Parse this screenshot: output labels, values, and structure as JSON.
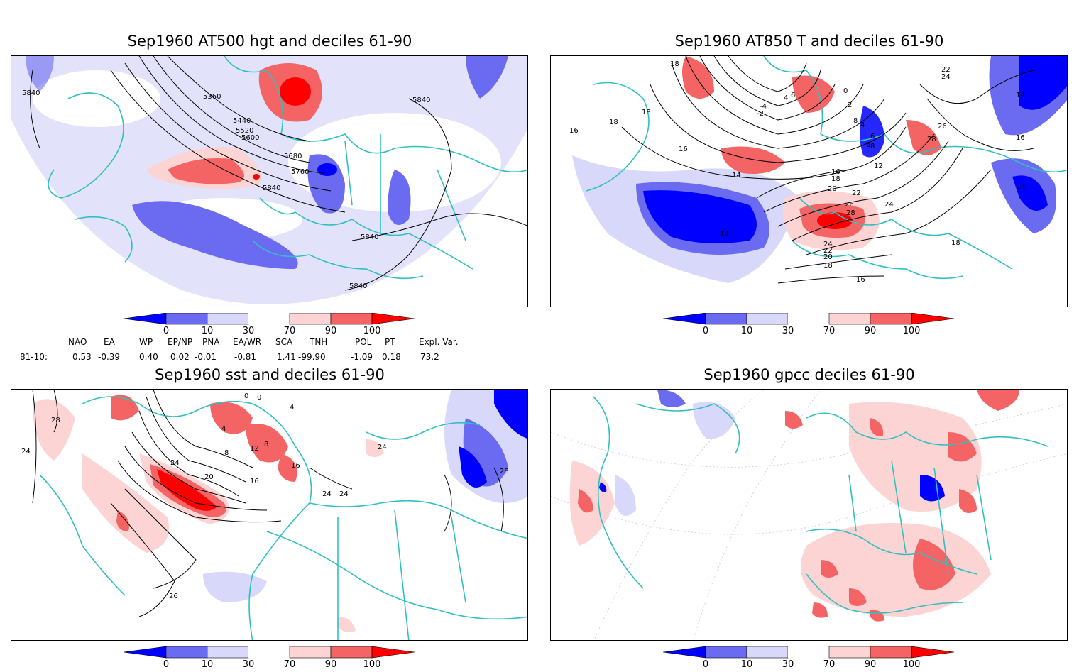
{
  "panels": [
    {
      "title": "Sep1960 AT500 hgt and deciles 61-90",
      "contour_labels": [
        "5840",
        "5360",
        "5440",
        "5520",
        "5600",
        "5680",
        "5760",
        "5840",
        "5840",
        "5840",
        "5840"
      ]
    },
    {
      "title": "Sep1960 AT850 T and deciles 61-90",
      "contour_labels": [
        "18",
        "18",
        "18",
        "16",
        "16",
        "14",
        "14",
        "16",
        "18",
        "20",
        "22",
        "24",
        "26",
        "28",
        "24",
        "22",
        "20",
        "18",
        "16",
        "18",
        "12",
        "14",
        "14",
        "16",
        "22",
        "24",
        "26",
        "28",
        "0",
        "2",
        "4",
        "6",
        "-2",
        "-4",
        "6",
        "8",
        "4",
        "6",
        "8"
      ]
    },
    {
      "title": "Sep1960 sst and deciles 61-90",
      "contour_labels": [
        "28",
        "24",
        "24",
        "20",
        "16",
        "12",
        "8",
        "8",
        "4",
        "0",
        "16",
        "24",
        "24",
        "24",
        "26",
        "28",
        "0",
        "4"
      ]
    },
    {
      "title": "Sep1960 gpcc deciles 61-90",
      "contour_labels": []
    }
  ],
  "colorbar": {
    "ticks": [
      "0",
      "10",
      "30",
      "70",
      "90",
      "100"
    ],
    "colors": [
      "#0000ff",
      "#6b6bf2",
      "#d8d8fa",
      "#ffffff",
      "#fcd4d4",
      "#f46464",
      "#ff0000"
    ]
  },
  "indices": {
    "row_label": "81-10:",
    "names": [
      "NAO",
      "EA",
      "WP",
      "EP/NP",
      "PNA",
      "EA/WR",
      "SCA",
      "TNH",
      "POL",
      "PT",
      "Expl. Var."
    ],
    "values": [
      "0.53",
      "-0.39",
      "0.40",
      "0.02",
      "-0.01",
      "-0.81",
      "1.41",
      "-99.90",
      "-1.09",
      "0.18",
      "73.2"
    ]
  },
  "colors": {
    "coast": "#30c0c0",
    "contour": "#000000",
    "frame": "#000000"
  }
}
